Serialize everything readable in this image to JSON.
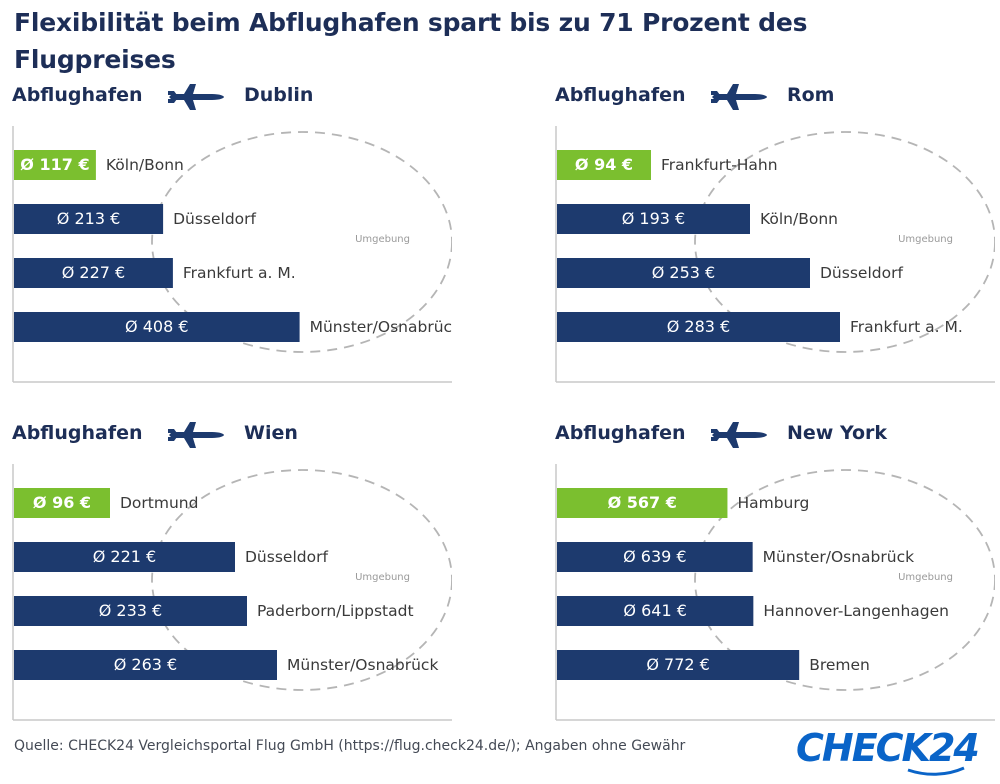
{
  "title": "Flexibilität beim Abflughafen spart bis zu 71 Prozent des Flugpreises",
  "origin_label": "Abflughafen",
  "surrounding_label": "Umgebung",
  "colors": {
    "navy": "#1d3a6e",
    "green": "#7bbf2f",
    "text": "#3a3a3a",
    "dash": "#b5b5b5"
  },
  "icon": "airplane-icon",
  "chart_data": [
    {
      "type": "bar",
      "destination": "Dublin",
      "categories": [
        "Köln/Bonn",
        "Düsseldorf",
        "Frankfurt a. M.",
        "Münster/Osnabrück"
      ],
      "values": [
        117,
        213,
        227,
        408
      ],
      "labels": [
        "Ø 117 €",
        "Ø 213 €",
        "Ø 227 €",
        "Ø 408 €"
      ],
      "highlight": [
        true,
        false,
        false,
        false
      ]
    },
    {
      "type": "bar",
      "destination": "Rom",
      "categories": [
        "Frankfurt-Hahn",
        "Köln/Bonn",
        "Düsseldorf",
        "Frankfurt a. M."
      ],
      "values": [
        94,
        193,
        253,
        283
      ],
      "labels": [
        "Ø 94 €",
        "Ø 193 €",
        "Ø 253 €",
        "Ø 283 €"
      ],
      "highlight": [
        true,
        false,
        false,
        false
      ]
    },
    {
      "type": "bar",
      "destination": "Wien",
      "categories": [
        "Dortmund",
        "Düsseldorf",
        "Paderborn/Lippstadt",
        "Münster/Osnabrück"
      ],
      "values": [
        96,
        221,
        233,
        263
      ],
      "labels": [
        "Ø 96 €",
        "Ø 221 €",
        "Ø 233 €",
        "Ø 263 €"
      ],
      "highlight": [
        true,
        false,
        false,
        false
      ]
    },
    {
      "type": "bar",
      "destination": "New York",
      "categories": [
        "Hamburg",
        "Münster/Osnabrück",
        "Hannover-Langenhagen",
        "Bremen"
      ],
      "values": [
        567,
        639,
        641,
        772
      ],
      "labels": [
        "Ø 567 €",
        "Ø 639 €",
        "Ø 641 €",
        "Ø 772 €"
      ],
      "highlight": [
        true,
        false,
        false,
        false
      ]
    }
  ],
  "footer": "Quelle: CHECK24 Vergleichsportal Flug GmbH (https://flug.check24.de/); Angaben ohne Gewähr",
  "logo": "CHECK24"
}
